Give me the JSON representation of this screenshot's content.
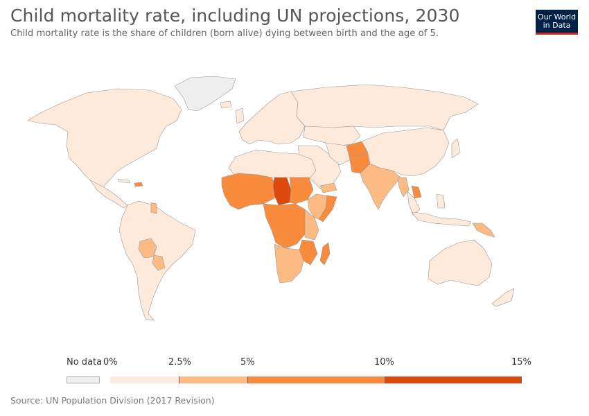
{
  "header": {
    "title": "Child mortality rate, including UN projections, 2030",
    "subtitle": "Child mortality rate is the share of children (born alive) dying between birth and the age of 5."
  },
  "logo": {
    "line1": "Our World",
    "line2": "in Data"
  },
  "legend": {
    "no_data_label": "No data",
    "no_data_color": "#eeeeee",
    "bins": [
      {
        "from": 0,
        "to": 2.5,
        "color": "#fdeadb"
      },
      {
        "from": 2.5,
        "to": 5,
        "color": "#fdbb84"
      },
      {
        "from": 5,
        "to": 10,
        "color": "#f88b3c"
      },
      {
        "from": 10,
        "to": 15,
        "color": "#db4a0b"
      }
    ],
    "tick_labels": [
      "0%",
      "2.5%",
      "5%",
      "10%",
      "15%"
    ]
  },
  "source": "Source: UN Population Division (2017 Revision)",
  "map_regions": [
    {
      "region": "North America",
      "bin": "0-2.5%",
      "color": "#fdeadb"
    },
    {
      "region": "Greenland",
      "bin": "No data",
      "color": "#eeeeee"
    },
    {
      "region": "South America",
      "bin": "0-2.5%",
      "color": "#fdeadb"
    },
    {
      "region": "Bolivia",
      "bin": "2.5-5%",
      "color": "#fdbb84"
    },
    {
      "region": "Paraguay",
      "bin": "2.5-5%",
      "color": "#fdbb84"
    },
    {
      "region": "Europe",
      "bin": "0-2.5%",
      "color": "#fdeadb"
    },
    {
      "region": "Russia",
      "bin": "0-2.5%",
      "color": "#fdeadb"
    },
    {
      "region": "China",
      "bin": "0-2.5%",
      "color": "#fdeadb"
    },
    {
      "region": "India",
      "bin": "2.5-5%",
      "color": "#fdbb84"
    },
    {
      "region": "Pakistan",
      "bin": "5-10%",
      "color": "#f88b3c"
    },
    {
      "region": "Afghanistan",
      "bin": "5-10%",
      "color": "#f88b3c"
    },
    {
      "region": "Chad",
      "bin": "10-15%",
      "color": "#db4a0b"
    },
    {
      "region": "West Africa",
      "bin": "5-10%",
      "color": "#f88b3c"
    },
    {
      "region": "Central Africa",
      "bin": "5-10%",
      "color": "#f88b3c"
    },
    {
      "region": "Southern Africa",
      "bin": "2.5-5%",
      "color": "#fdbb84"
    },
    {
      "region": "North Africa",
      "bin": "0-2.5%",
      "color": "#fdeadb"
    },
    {
      "region": "Australia",
      "bin": "0-2.5%",
      "color": "#fdeadb"
    },
    {
      "region": "Papua New Guinea",
      "bin": "2.5-5%",
      "color": "#fdbb84"
    }
  ]
}
